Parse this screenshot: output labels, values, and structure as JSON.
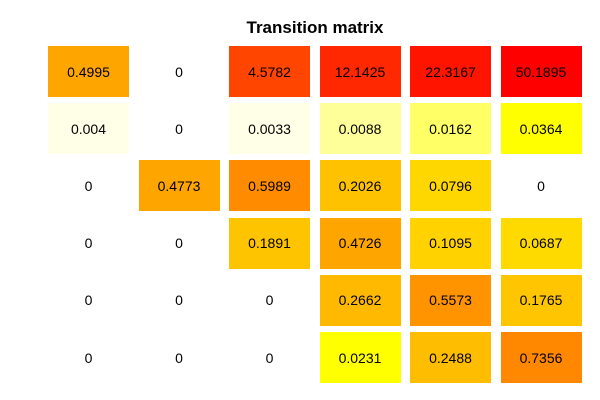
{
  "chart_data": {
    "type": "heatmap",
    "title": "Transition matrix",
    "rows": 6,
    "cols": 6,
    "cells": [
      [
        {
          "text": "0.4995",
          "color": "#FFA500"
        },
        {
          "text": "0",
          "color": "#FFFFFF"
        },
        {
          "text": "4.5782",
          "color": "#FF4500"
        },
        {
          "text": "12.1425",
          "color": "#FF2800"
        },
        {
          "text": "22.3167",
          "color": "#FF1400"
        },
        {
          "text": "50.1895",
          "color": "#FF0000"
        }
      ],
      [
        {
          "text": "0.004",
          "color": "#FFFFE8"
        },
        {
          "text": "0",
          "color": "#FFFFFF"
        },
        {
          "text": "0.0033",
          "color": "#FFFFE8"
        },
        {
          "text": "0.0088",
          "color": "#FFFF99"
        },
        {
          "text": "0.0162",
          "color": "#FFFF66"
        },
        {
          "text": "0.0364",
          "color": "#FFFF00"
        }
      ],
      [
        {
          "text": "0",
          "color": "#FFFFFF"
        },
        {
          "text": "0.4773",
          "color": "#FFA500"
        },
        {
          "text": "0.5989",
          "color": "#FF8C00"
        },
        {
          "text": "0.2026",
          "color": "#FFC200"
        },
        {
          "text": "0.0796",
          "color": "#FFD700"
        },
        {
          "text": "0",
          "color": "#FFFFFF"
        }
      ],
      [
        {
          "text": "0",
          "color": "#FFFFFF"
        },
        {
          "text": "0",
          "color": "#FFFFFF"
        },
        {
          "text": "0.1891",
          "color": "#FFC400"
        },
        {
          "text": "0.4726",
          "color": "#FFA500"
        },
        {
          "text": "0.1095",
          "color": "#FFD200"
        },
        {
          "text": "0.0687",
          "color": "#FFDA00"
        }
      ],
      [
        {
          "text": "0",
          "color": "#FFFFFF"
        },
        {
          "text": "0",
          "color": "#FFFFFF"
        },
        {
          "text": "0",
          "color": "#FFFFFF"
        },
        {
          "text": "0.2662",
          "color": "#FFBA00"
        },
        {
          "text": "0.5573",
          "color": "#FF9400"
        },
        {
          "text": "0.1765",
          "color": "#FFC600"
        }
      ],
      [
        {
          "text": "0",
          "color": "#FFFFFF"
        },
        {
          "text": "0",
          "color": "#FFFFFF"
        },
        {
          "text": "0",
          "color": "#FFFFFF"
        },
        {
          "text": "0.0231",
          "color": "#FFFF00"
        },
        {
          "text": "0.2488",
          "color": "#FFBD00"
        },
        {
          "text": "0.7356",
          "color": "#FF8800"
        }
      ]
    ]
  }
}
